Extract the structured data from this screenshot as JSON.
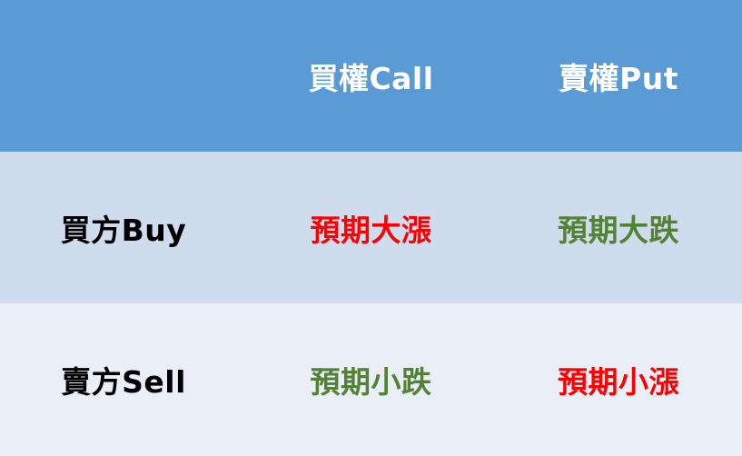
{
  "table": {
    "header": {
      "corner": "",
      "call": "買權Call",
      "put": "賣權Put"
    },
    "rows": [
      {
        "side": "買方Buy",
        "call_view": "預期大漲",
        "put_view": "預期大跌"
      },
      {
        "side": "賣方Sell",
        "call_view": "預期小跌",
        "put_view": "預期小漲"
      }
    ]
  },
  "colors": {
    "header_bg": "#5b9bd5",
    "buy_row_bg": "#cfdcee",
    "sell_row_bg": "#e9eef7",
    "header_text": "#ffffff",
    "side_text": "#000000",
    "rise_red": "#ff0000",
    "fall_green": "#548235"
  }
}
